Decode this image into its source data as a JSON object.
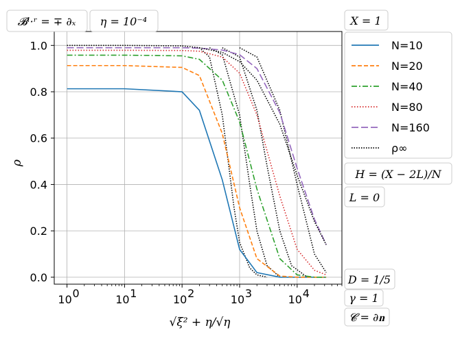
{
  "chart_data": {
    "type": "line",
    "x_scale": "log",
    "xlim": [
      0.6,
      60000
    ],
    "ylim": [
      -0.03,
      1.06
    ],
    "grid": true,
    "xticks": [
      1,
      10,
      100,
      1000,
      10000
    ],
    "xtick_labels": [
      "10",
      "10",
      "10",
      "10",
      "10"
    ],
    "xtick_exponents": [
      "0",
      "1",
      "2",
      "3",
      "4"
    ],
    "yticks": [
      0.0,
      0.2,
      0.4,
      0.6,
      0.8,
      1.0
    ],
    "ytick_labels": [
      "0.0",
      "0.2",
      "0.4",
      "0.6",
      "0.8",
      "1.0"
    ],
    "xlabel": "√ξ² + η/√η",
    "ylabel": "ρ",
    "legend_position": "right",
    "x": [
      1,
      10,
      100,
      200,
      500,
      1000,
      2000,
      5000,
      10000,
      20000,
      32000
    ],
    "series": [
      {
        "name": "N=10",
        "color": "#1f77b4",
        "style": "solid",
        "values": [
          0.813,
          0.813,
          0.8,
          0.72,
          0.42,
          0.12,
          0.02,
          0.0,
          0.0,
          0.0,
          0.0
        ]
      },
      {
        "name": "N=20",
        "color": "#ff7f0e",
        "style": "dashed",
        "values": [
          0.913,
          0.913,
          0.905,
          0.87,
          0.62,
          0.3,
          0.08,
          0.005,
          0.0,
          0.0,
          0.0
        ]
      },
      {
        "name": "N=40",
        "color": "#2ca02c",
        "style": "dashdot",
        "values": [
          0.958,
          0.958,
          0.955,
          0.94,
          0.85,
          0.67,
          0.38,
          0.08,
          0.01,
          0.0,
          0.0
        ]
      },
      {
        "name": "N=80",
        "color": "#d62728",
        "style": "dotted",
        "values": [
          0.979,
          0.979,
          0.978,
          0.975,
          0.95,
          0.88,
          0.7,
          0.35,
          0.12,
          0.03,
          0.01
        ]
      },
      {
        "name": "N=160",
        "color": "#9467bd",
        "style": "longdash",
        "values": [
          0.99,
          0.99,
          0.99,
          0.988,
          0.98,
          0.96,
          0.9,
          0.71,
          0.47,
          0.25,
          0.14
        ]
      },
      {
        "name": "ρ∞",
        "color": "#000000",
        "style": "dense-dotted",
        "values": [
          1.0,
          1.0,
          0.998,
          0.99,
          0.97,
          0.93,
          0.85,
          0.66,
          0.44,
          0.24,
          0.14
        ]
      }
    ],
    "extra_reference_curves": [
      {
        "x": [
          200,
          300,
          500,
          800,
          1000,
          1500,
          2000,
          3000
        ],
        "values": [
          0.99,
          0.95,
          0.7,
          0.3,
          0.15,
          0.04,
          0.01,
          0.0
        ]
      },
      {
        "x": [
          300,
          500,
          1000,
          1500,
          2000,
          3000,
          5000
        ],
        "values": [
          0.99,
          0.96,
          0.7,
          0.4,
          0.2,
          0.05,
          0.0
        ]
      },
      {
        "x": [
          500,
          1000,
          2000,
          3000,
          5000,
          8000,
          15000
        ],
        "values": [
          0.99,
          0.95,
          0.72,
          0.48,
          0.2,
          0.05,
          0.0
        ]
      },
      {
        "x": [
          1000,
          2000,
          5000,
          10000,
          20000,
          32000
        ],
        "values": [
          0.99,
          0.95,
          0.72,
          0.4,
          0.1,
          0.02
        ]
      }
    ],
    "annotations": {
      "top_left": "𝓑ˡ·ʳ = ∓ ∂ₓ",
      "top_eta": "η = 10⁻⁴",
      "top_right": "X = 1",
      "h": "H = (X − 2L)/N",
      "l": "L = 0",
      "d": "D = 1/5",
      "gamma": "γ = 1",
      "c": "𝓒 = ∂𝐧"
    }
  }
}
